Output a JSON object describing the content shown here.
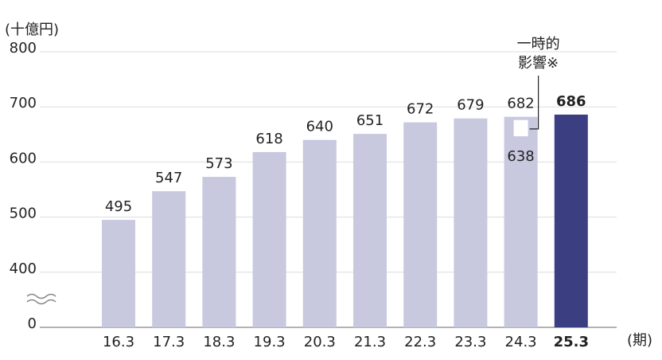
{
  "chart_data": {
    "type": "bar",
    "unit": "(十億円)",
    "x_unit": "(期)",
    "categories": [
      "16.3",
      "17.3",
      "18.3",
      "19.3",
      "20.3",
      "21.3",
      "22.3",
      "23.3",
      "24.3",
      "25.3"
    ],
    "values": [
      495,
      547,
      573,
      618,
      640,
      651,
      672,
      679,
      682,
      686
    ],
    "color": "#c8c8df",
    "highlight_color": "#3b3f82",
    "highlight_category": "25.3",
    "ylim": [
      0,
      800
    ],
    "yticks": [
      0,
      400,
      500,
      600,
      700,
      800
    ],
    "axis_break": true,
    "grid": true,
    "annotation": {
      "category": "24.3",
      "value": 638,
      "text": [
        "一時的",
        "影響※"
      ]
    }
  }
}
